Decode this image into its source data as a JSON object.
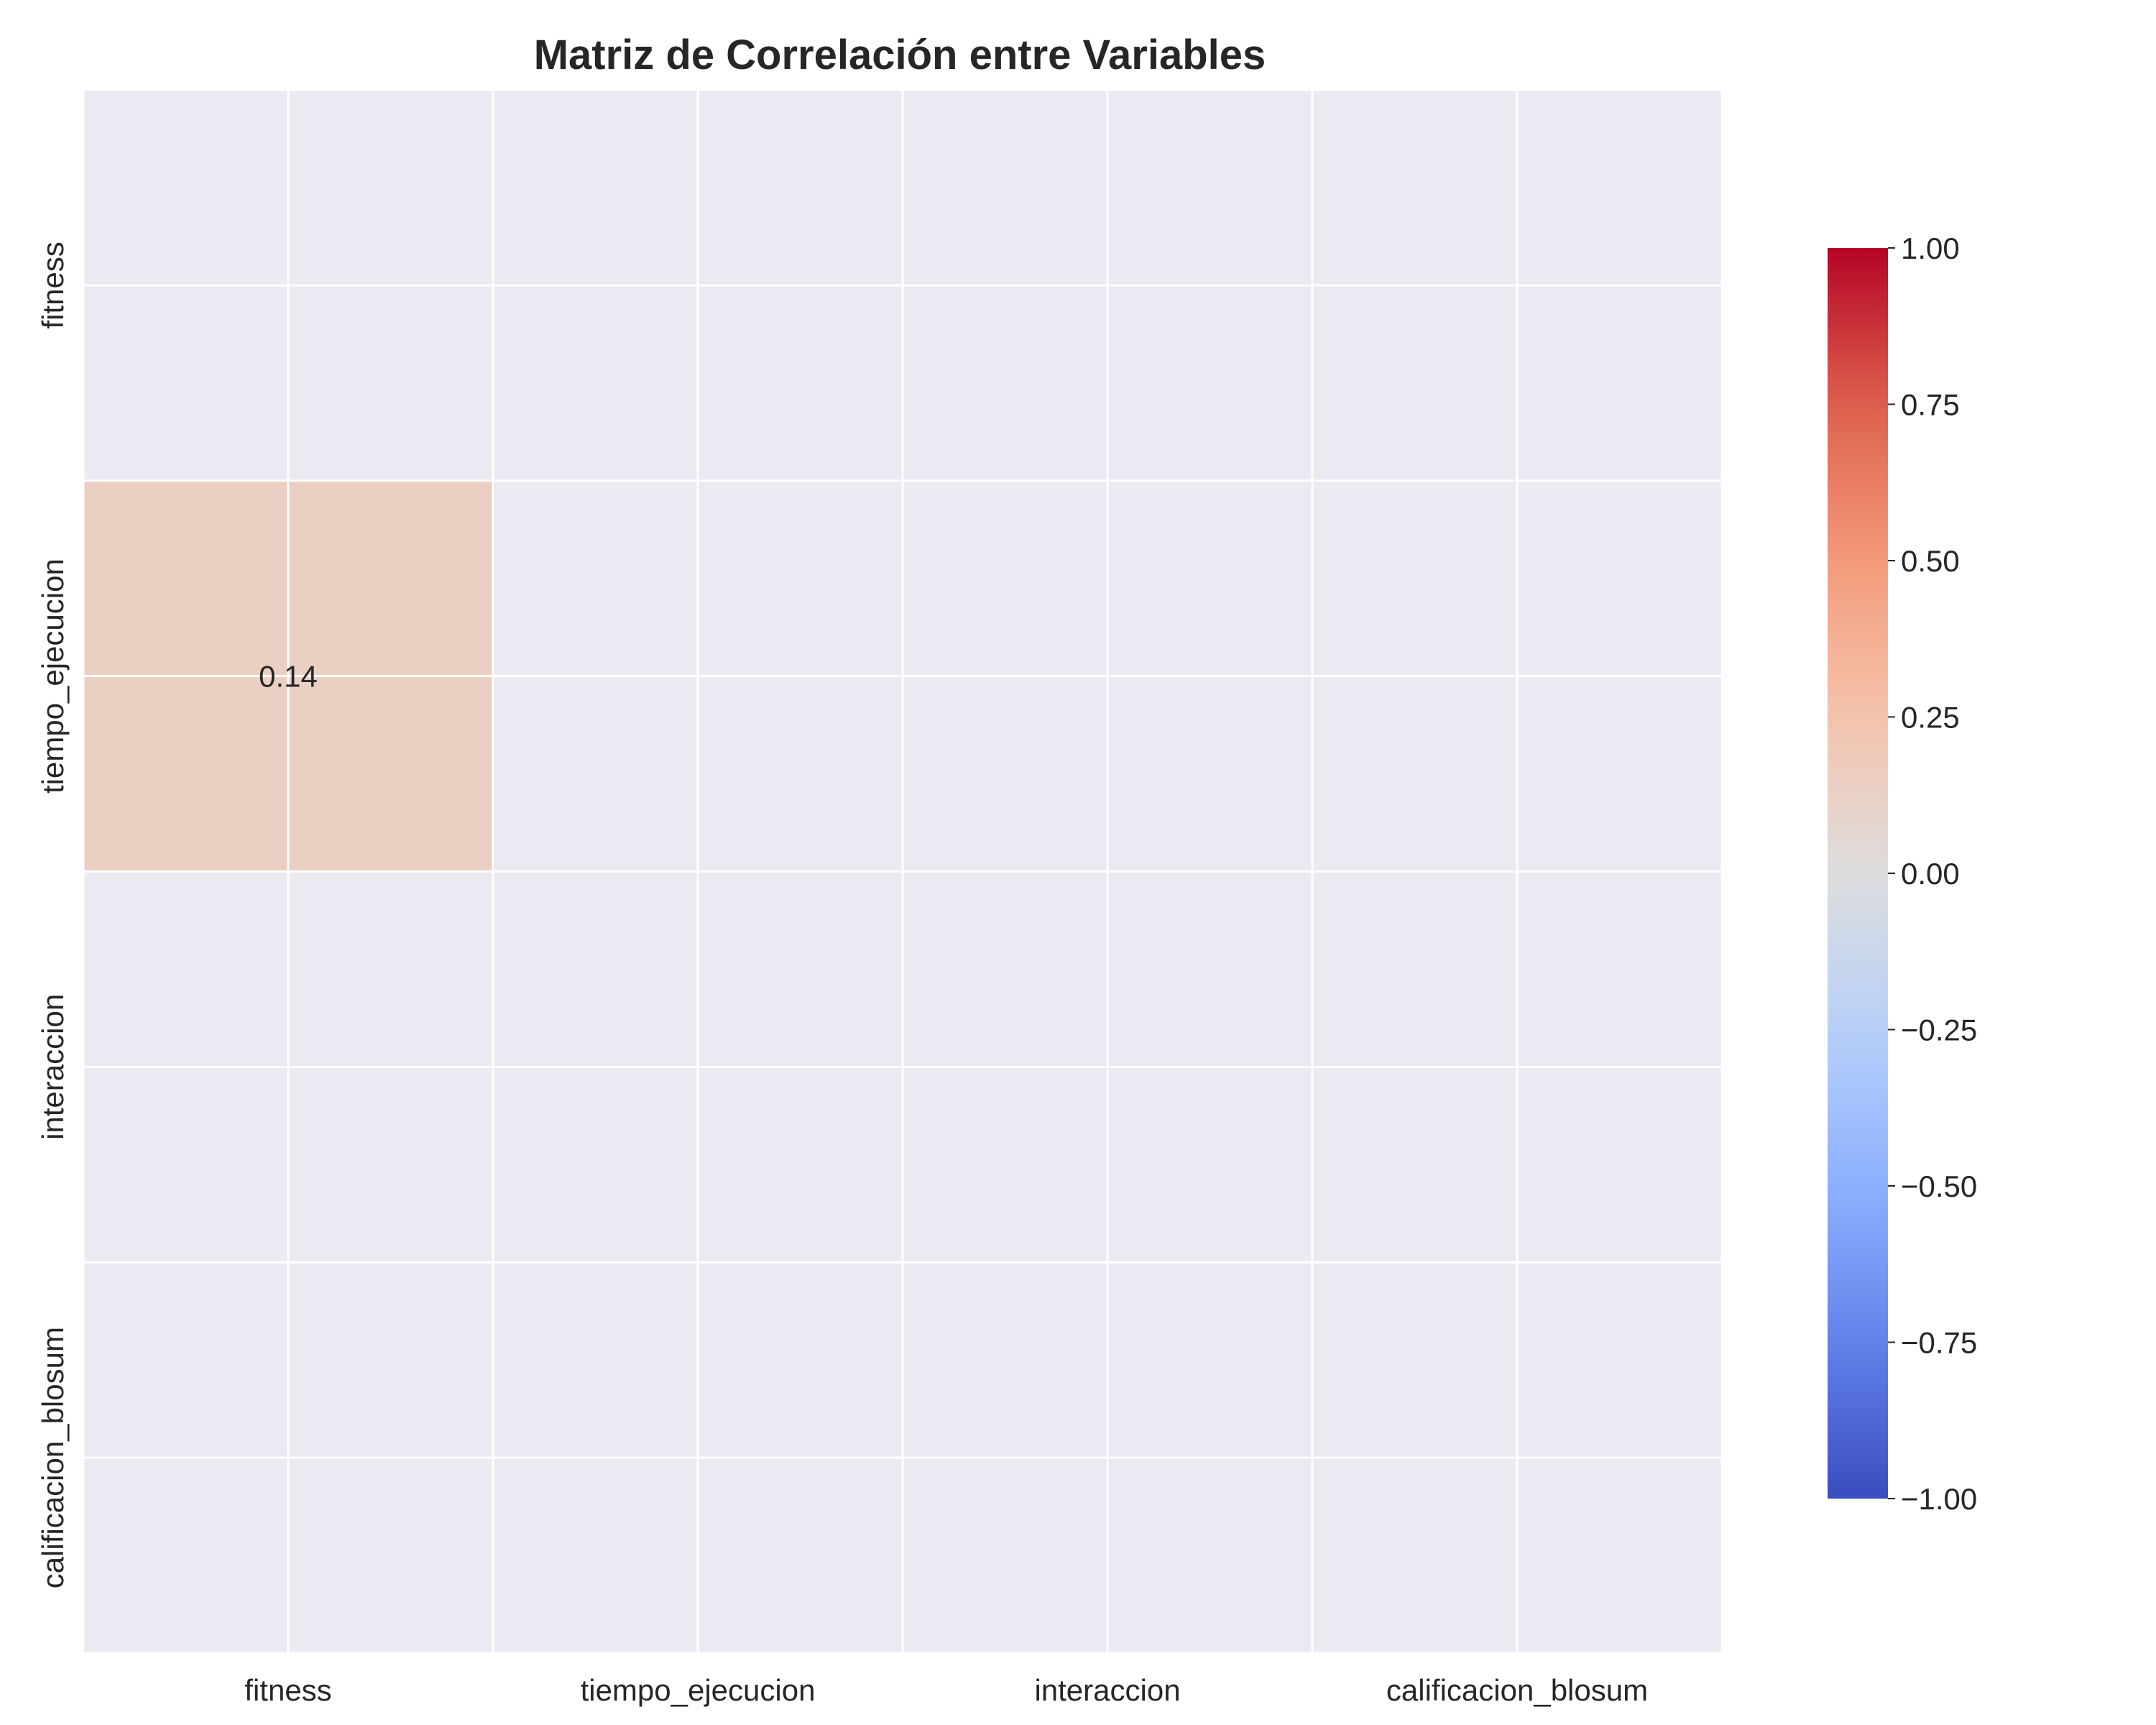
{
  "chart_data": {
    "type": "heatmap",
    "title": "Matriz de Correlación entre Variables",
    "xlabel": "",
    "ylabel": "",
    "x_categories": [
      "fitness",
      "tiempo_ejecucion",
      "interaccion",
      "calificacion_blosum"
    ],
    "y_categories": [
      "fitness",
      "tiempo_ejecucion",
      "interaccion",
      "calificacion_blosum"
    ],
    "mask": "upper_triangle_including_diagonal",
    "cells": [
      {
        "row": "tiempo_ejecucion",
        "col": "fitness",
        "value": 0.14,
        "label": "0.14"
      }
    ],
    "colorbar": {
      "colormap": "coolwarm",
      "vmin": -1.0,
      "vmax": 1.0,
      "ticks": [
        1.0,
        0.75,
        0.5,
        0.25,
        0.0,
        -0.25,
        -0.5,
        -0.75,
        -1.0
      ],
      "tick_labels": [
        "1.00",
        "0.75",
        "0.50",
        "0.25",
        "0.00",
        "−0.25",
        "−0.50",
        "−0.75",
        "−1.00"
      ]
    },
    "grid": true,
    "background_color": "#eaeaf2",
    "grid_color": "#ffffff"
  }
}
